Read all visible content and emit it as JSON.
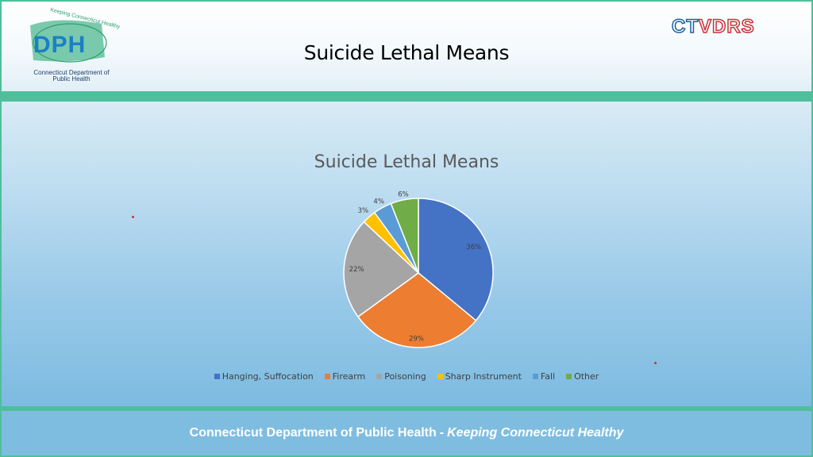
{
  "header": {
    "title": "Suicide Lethal Means",
    "dph_logo": {
      "letters": "DPH",
      "tagline": "Keeping Connecticut Healthy",
      "subtitle": "Connecticut Department of Public Health"
    },
    "right_logo": {
      "part1": "CT",
      "part2": "VDRS"
    }
  },
  "footer": {
    "org": "Connecticut Department of Public Health",
    "separator": "-",
    "tagline": "Keeping Connecticut Healthy"
  },
  "colors": {
    "accent_green": "#4fbf9b",
    "dph_blue": "#1b7fc4"
  },
  "chart_data": {
    "type": "pie",
    "title": "Suicide Lethal Means",
    "legend_position": "bottom",
    "categories": [
      "Hanging, Suffocation",
      "Firearm",
      "Poisoning",
      "Sharp Instrument",
      "Fall",
      "Other"
    ],
    "values": [
      36,
      29,
      22,
      3,
      4,
      6
    ],
    "labels": [
      "36%",
      "29%",
      "22%",
      "3%",
      "4%",
      "6%"
    ],
    "colors": [
      "#4472c4",
      "#ed7d31",
      "#a5a5a5",
      "#ffc000",
      "#5b9bd5",
      "#70ad47"
    ]
  }
}
